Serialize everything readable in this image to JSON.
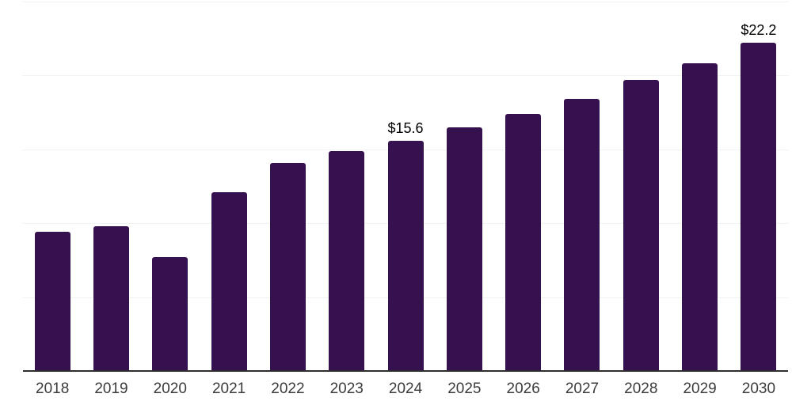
{
  "chart_data": {
    "type": "bar",
    "title": "",
    "xlabel": "",
    "ylabel": "",
    "categories": [
      "2018",
      "2019",
      "2020",
      "2021",
      "2022",
      "2023",
      "2024",
      "2025",
      "2026",
      "2027",
      "2028",
      "2029",
      "2030"
    ],
    "values": [
      9.4,
      9.8,
      7.7,
      12.1,
      14.1,
      14.9,
      15.6,
      16.5,
      17.4,
      18.4,
      19.7,
      20.8,
      22.2
    ],
    "data_labels": {
      "2024": "$15.6",
      "2030": "$22.2"
    },
    "ylim": [
      0,
      25
    ],
    "gridline_values": [
      5,
      10,
      15,
      20,
      25
    ],
    "grid": true,
    "legend": false,
    "colors": {
      "bar": "#36114f",
      "gridline": "#f2f2f4",
      "axis_line": "#2d2d2d",
      "tick_label": "#3b3b3b",
      "data_label": "#000000",
      "background": "#ffffff"
    }
  }
}
